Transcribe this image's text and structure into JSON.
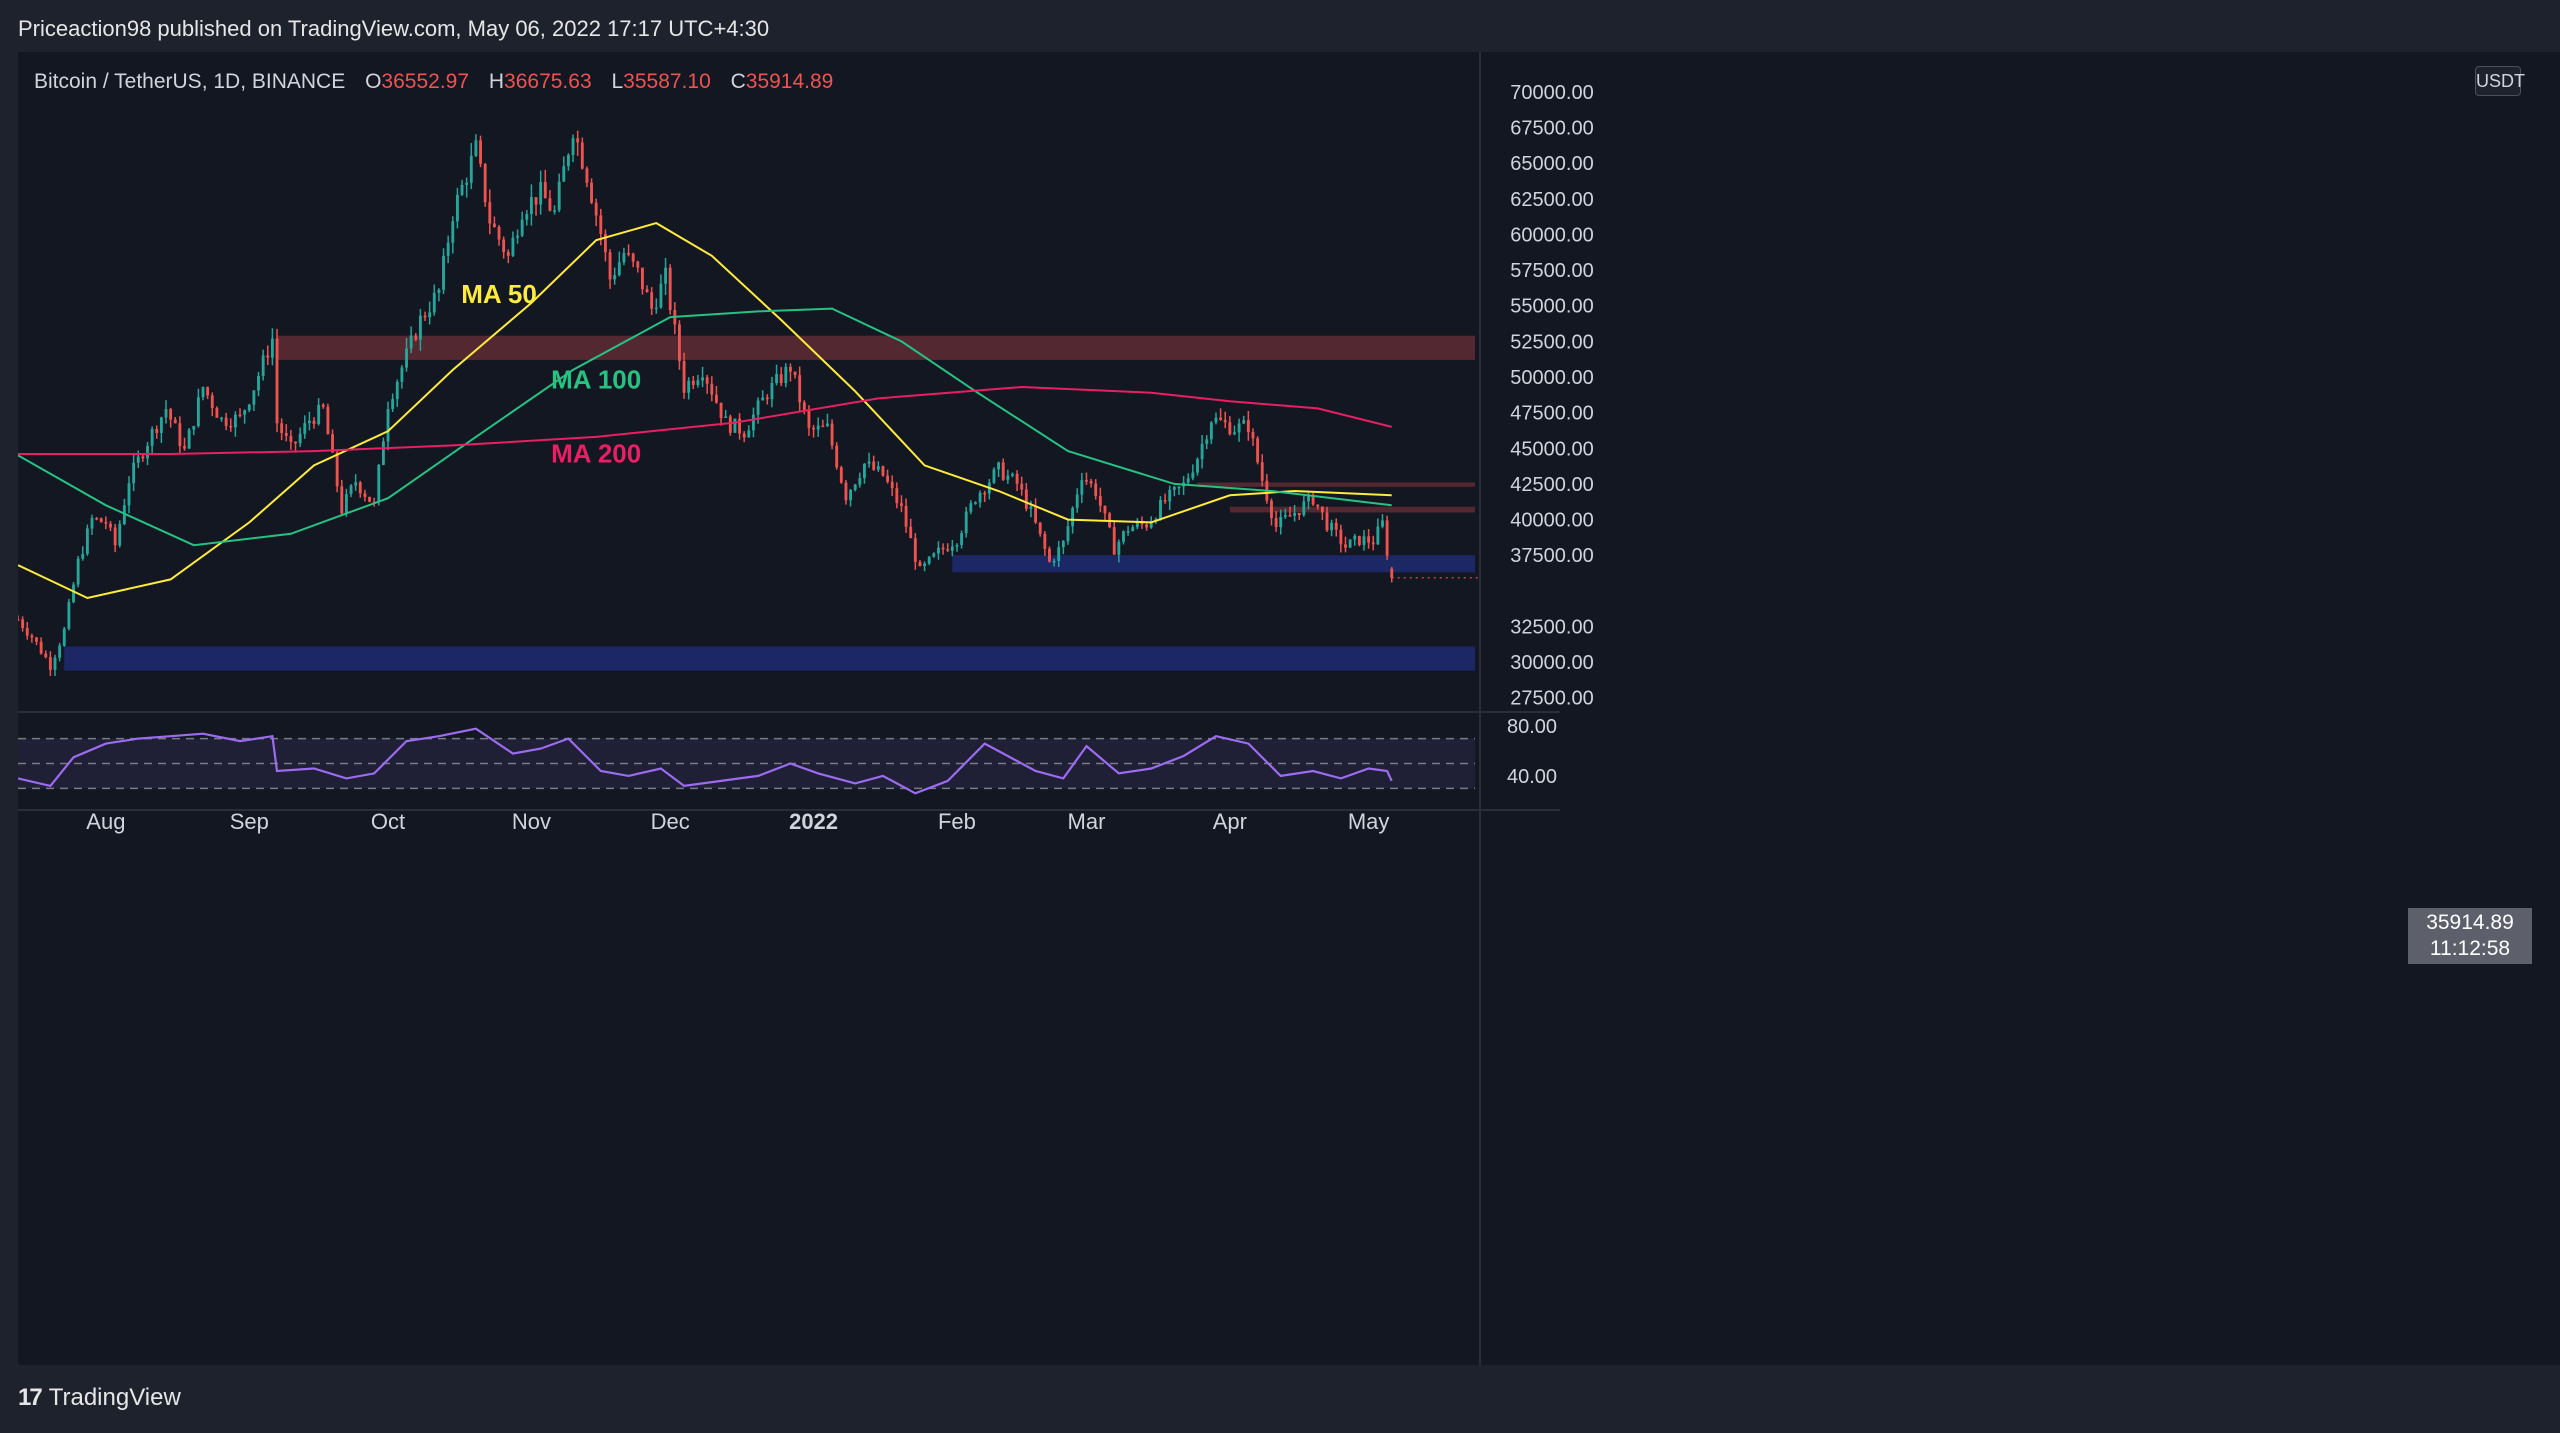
{
  "header": {
    "publisher_line": "Priceaction98 published on TradingView.com, May 06, 2022 17:17 UTC+4:30"
  },
  "legend": {
    "symbol": "Bitcoin / TetherUS, 1D, BINANCE",
    "open_label": "O",
    "open": "36552.97",
    "high_label": "H",
    "high": "36675.63",
    "low_label": "L",
    "low": "35587.10",
    "close_label": "C",
    "close": "35914.89"
  },
  "axis": {
    "currency_button": "USDT",
    "currency_suffix": "0",
    "currency_prefix": "7"
  },
  "price_tag": {
    "price": "35914.89",
    "countdown": "11:12:58"
  },
  "footer": {
    "brand": "TradingView"
  },
  "chart_data": {
    "type": "candlestick",
    "title": "",
    "price_axis": {
      "ticks": [
        27500,
        30000,
        32500,
        35000,
        37500,
        40000,
        42500,
        45000,
        47500,
        50000,
        52500,
        55000,
        57500,
        60000,
        62500,
        65000,
        67500,
        70000
      ],
      "tick_labels": [
        "27500.00",
        "30000.00",
        "32500.00",
        "",
        "37500.00",
        "40000.00",
        "42500.00",
        "45000.00",
        "47500.00",
        "50000.00",
        "52500.00",
        "55000.00",
        "57500.00",
        "60000.00",
        "62500.00",
        "65000.00",
        "67500.00",
        "70000.00"
      ],
      "ylim": [
        26500,
        72800
      ]
    },
    "time_axis": {
      "labels": [
        {
          "text": "Aug",
          "date": "2021-08-01"
        },
        {
          "text": "Sep",
          "date": "2021-09-01"
        },
        {
          "text": "Oct",
          "date": "2021-10-01"
        },
        {
          "text": "Nov",
          "date": "2021-11-01"
        },
        {
          "text": "Dec",
          "date": "2021-12-01"
        },
        {
          "text": "2022",
          "date": "2022-01-01"
        },
        {
          "text": "Feb",
          "date": "2022-02-01"
        },
        {
          "text": "Mar",
          "date": "2022-03-01"
        },
        {
          "text": "Apr",
          "date": "2022-04-01"
        },
        {
          "text": "May",
          "date": "2022-05-01"
        }
      ],
      "range": [
        "2021-07-13",
        "2022-05-24"
      ]
    },
    "price_path": [
      [
        "2021-07-13",
        33000
      ],
      [
        "2021-07-16",
        31800
      ],
      [
        "2021-07-20",
        29800
      ],
      [
        "2021-07-23",
        32200
      ],
      [
        "2021-07-26",
        37000
      ],
      [
        "2021-07-29",
        40000
      ],
      [
        "2021-08-01",
        39800
      ],
      [
        "2021-08-03",
        38200
      ],
      [
        "2021-08-06",
        42800
      ],
      [
        "2021-08-10",
        45500
      ],
      [
        "2021-08-14",
        47800
      ],
      [
        "2021-08-18",
        44800
      ],
      [
        "2021-08-22",
        49300
      ],
      [
        "2021-08-26",
        47000
      ],
      [
        "2021-08-30",
        47100
      ],
      [
        "2021-09-02",
        49300
      ],
      [
        "2021-09-06",
        52700
      ],
      [
        "2021-09-07",
        46800
      ],
      [
        "2021-09-10",
        44900
      ],
      [
        "2021-09-14",
        47000
      ],
      [
        "2021-09-17",
        47700
      ],
      [
        "2021-09-21",
        40700
      ],
      [
        "2021-09-24",
        42700
      ],
      [
        "2021-09-28",
        41000
      ],
      [
        "2021-10-01",
        48200
      ],
      [
        "2021-10-05",
        51500
      ],
      [
        "2021-10-08",
        54000
      ],
      [
        "2021-10-12",
        56000
      ],
      [
        "2021-10-15",
        61500
      ],
      [
        "2021-10-20",
        66000
      ],
      [
        "2021-10-23",
        61000
      ],
      [
        "2021-10-27",
        58400
      ],
      [
        "2021-10-30",
        61800
      ],
      [
        "2021-11-03",
        62900
      ],
      [
        "2021-11-06",
        61500
      ],
      [
        "2021-11-10",
        67500
      ],
      [
        "2021-11-13",
        64200
      ],
      [
        "2021-11-16",
        60100
      ],
      [
        "2021-11-18",
        56900
      ],
      [
        "2021-11-21",
        58700
      ],
      [
        "2021-11-24",
        57300
      ],
      [
        "2021-11-27",
        54800
      ],
      [
        "2021-11-30",
        57000
      ],
      [
        "2021-12-04",
        49300
      ],
      [
        "2021-12-08",
        50600
      ],
      [
        "2021-12-13",
        46800
      ],
      [
        "2021-12-17",
        46200
      ],
      [
        "2021-12-22",
        48900
      ],
      [
        "2021-12-27",
        50700
      ],
      [
        "2021-12-31",
        46200
      ],
      [
        "2022-01-04",
        46400
      ],
      [
        "2022-01-08",
        41700
      ],
      [
        "2022-01-12",
        43900
      ],
      [
        "2022-01-16",
        43100
      ],
      [
        "2022-01-20",
        40700
      ],
      [
        "2022-01-24",
        36300
      ],
      [
        "2022-01-28",
        37700
      ],
      [
        "2022-02-01",
        38700
      ],
      [
        "2022-02-05",
        41600
      ],
      [
        "2022-02-10",
        43500
      ],
      [
        "2022-02-14",
        42500
      ],
      [
        "2022-02-17",
        40500
      ],
      [
        "2022-02-21",
        37000
      ],
      [
        "2022-02-24",
        38300
      ],
      [
        "2022-02-28",
        43200
      ],
      [
        "2022-03-03",
        42000
      ],
      [
        "2022-03-07",
        38000
      ],
      [
        "2022-03-10",
        39400
      ],
      [
        "2022-03-14",
        39700
      ],
      [
        "2022-03-18",
        41300
      ],
      [
        "2022-03-22",
        42400
      ],
      [
        "2022-03-25",
        44400
      ],
      [
        "2022-03-28",
        47100
      ],
      [
        "2022-04-02",
        46400
      ],
      [
        "2022-04-05",
        46600
      ],
      [
        "2022-04-08",
        42800
      ],
      [
        "2022-04-11",
        39500
      ],
      [
        "2022-04-15",
        40500
      ],
      [
        "2022-04-19",
        41500
      ],
      [
        "2022-04-22",
        39700
      ],
      [
        "2022-04-26",
        38100
      ],
      [
        "2022-04-29",
        38600
      ],
      [
        "2022-05-02",
        38500
      ],
      [
        "2022-05-04",
        39700
      ],
      [
        "2022-05-06",
        35900
      ]
    ],
    "last_candle": {
      "date": "2022-05-06",
      "open": 36552.97,
      "high": 36675.63,
      "low": 35587.1,
      "close": 35914.89
    },
    "moving_averages": [
      {
        "name": "MA 50",
        "color": "#ffeb3b",
        "label_date": "2021-10-25",
        "label_price": 55200,
        "points": [
          [
            "2021-07-13",
            36800
          ],
          [
            "2021-07-28",
            34500
          ],
          [
            "2021-08-15",
            35800
          ],
          [
            "2021-09-01",
            39800
          ],
          [
            "2021-09-15",
            43800
          ],
          [
            "2021-10-01",
            46200
          ],
          [
            "2021-10-15",
            50500
          ],
          [
            "2021-11-01",
            55200
          ],
          [
            "2021-11-15",
            59600
          ],
          [
            "2021-11-28",
            60800
          ],
          [
            "2021-12-10",
            58500
          ],
          [
            "2021-12-25",
            54000
          ],
          [
            "2022-01-10",
            49000
          ],
          [
            "2022-01-25",
            43800
          ],
          [
            "2022-02-10",
            42000
          ],
          [
            "2022-02-25",
            40000
          ],
          [
            "2022-03-15",
            39800
          ],
          [
            "2022-04-01",
            41700
          ],
          [
            "2022-04-15",
            42000
          ],
          [
            "2022-05-06",
            41700
          ]
        ]
      },
      {
        "name": "MA 100",
        "color": "#26c281",
        "label_date": "2021-11-15",
        "label_price": 49200,
        "points": [
          [
            "2021-07-13",
            44500
          ],
          [
            "2021-08-01",
            41000
          ],
          [
            "2021-08-20",
            38200
          ],
          [
            "2021-09-10",
            39000
          ],
          [
            "2021-10-01",
            41500
          ],
          [
            "2021-10-20",
            45800
          ],
          [
            "2021-11-10",
            50500
          ],
          [
            "2021-12-01",
            54200
          ],
          [
            "2021-12-20",
            54600
          ],
          [
            "2022-01-05",
            54800
          ],
          [
            "2022-01-20",
            52500
          ],
          [
            "2022-02-05",
            49000
          ],
          [
            "2022-02-25",
            44800
          ],
          [
            "2022-03-20",
            42500
          ],
          [
            "2022-04-10",
            42000
          ],
          [
            "2022-05-06",
            41000
          ]
        ]
      },
      {
        "name": "MA 200",
        "color": "#e91e63",
        "label_date": "2021-11-15",
        "label_price": 44000,
        "points": [
          [
            "2021-07-13",
            44600
          ],
          [
            "2021-08-15",
            44600
          ],
          [
            "2021-09-15",
            44800
          ],
          [
            "2021-10-15",
            45200
          ],
          [
            "2021-11-15",
            45800
          ],
          [
            "2021-12-15",
            46800
          ],
          [
            "2022-01-15",
            48500
          ],
          [
            "2022-02-15",
            49300
          ],
          [
            "2022-03-15",
            48900
          ],
          [
            "2022-04-01",
            48300
          ],
          [
            "2022-04-20",
            47800
          ],
          [
            "2022-05-06",
            46500
          ]
        ]
      }
    ],
    "zones": [
      {
        "kind": "resistance",
        "color": "#5c2a33",
        "from": "2021-09-07",
        "low": 51200,
        "high": 52900
      },
      {
        "kind": "resistance",
        "color": "#5c2a33",
        "from": "2022-03-25",
        "low": 42300,
        "high": 42600
      },
      {
        "kind": "resistance",
        "color": "#5c2a33",
        "from": "2022-04-01",
        "low": 40500,
        "high": 40900
      },
      {
        "kind": "support",
        "color": "#1e2a6e",
        "from": "2022-01-31",
        "low": 36300,
        "high": 37500
      },
      {
        "kind": "support",
        "color": "#1e2a6e",
        "from": "2021-07-23",
        "low": 29400,
        "high": 31100
      }
    ],
    "rsi": {
      "ticks": [
        40,
        80
      ],
      "tick_labels": [
        "40.00",
        "80.00"
      ],
      "levels": [
        30,
        50,
        70
      ],
      "ylim": [
        15,
        85
      ],
      "color": "#9c6cf0",
      "points": [
        [
          "2021-07-13",
          38
        ],
        [
          "2021-07-20",
          32
        ],
        [
          "2021-07-25",
          55
        ],
        [
          "2021-08-01",
          66
        ],
        [
          "2021-08-08",
          70
        ],
        [
          "2021-08-15",
          72
        ],
        [
          "2021-08-22",
          74
        ],
        [
          "2021-08-30",
          68
        ],
        [
          "2021-09-06",
          72
        ],
        [
          "2021-09-07",
          44
        ],
        [
          "2021-09-15",
          46
        ],
        [
          "2021-09-22",
          38
        ],
        [
          "2021-09-28",
          42
        ],
        [
          "2021-10-05",
          68
        ],
        [
          "2021-10-12",
          72
        ],
        [
          "2021-10-20",
          78
        ],
        [
          "2021-10-28",
          58
        ],
        [
          "2021-11-03",
          62
        ],
        [
          "2021-11-09",
          70
        ],
        [
          "2021-11-16",
          44
        ],
        [
          "2021-11-22",
          40
        ],
        [
          "2021-11-29",
          46
        ],
        [
          "2021-12-04",
          32
        ],
        [
          "2021-12-12",
          36
        ],
        [
          "2021-12-20",
          40
        ],
        [
          "2021-12-27",
          50
        ],
        [
          "2022-01-02",
          42
        ],
        [
          "2022-01-10",
          34
        ],
        [
          "2022-01-16",
          40
        ],
        [
          "2022-01-23",
          26
        ],
        [
          "2022-01-30",
          36
        ],
        [
          "2022-02-07",
          66
        ],
        [
          "2022-02-12",
          56
        ],
        [
          "2022-02-18",
          44
        ],
        [
          "2022-02-24",
          38
        ],
        [
          "2022-03-01",
          64
        ],
        [
          "2022-03-08",
          42
        ],
        [
          "2022-03-15",
          46
        ],
        [
          "2022-03-22",
          56
        ],
        [
          "2022-03-29",
          72
        ],
        [
          "2022-04-05",
          66
        ],
        [
          "2022-04-12",
          40
        ],
        [
          "2022-04-19",
          44
        ],
        [
          "2022-04-25",
          38
        ],
        [
          "2022-05-01",
          46
        ],
        [
          "2022-05-05",
          44
        ],
        [
          "2022-05-06",
          36
        ]
      ]
    },
    "grid": false,
    "legend": "top-left"
  }
}
